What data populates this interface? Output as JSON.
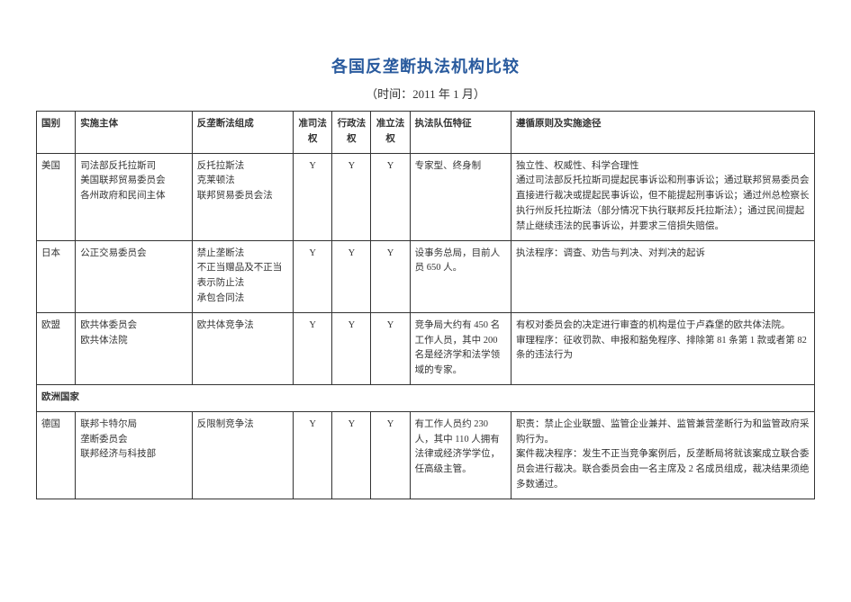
{
  "title": "各国反垄断执法机构比较",
  "subtitle": "（时间：2011 年 1 月）",
  "headers": {
    "c0": "国别",
    "c1": "实施主体",
    "c2": "反垄断法组成",
    "c3": "准司法权",
    "c4": "行政法权",
    "c5": "准立法权",
    "c6": "执法队伍特征",
    "c7": "遵循原则及实施途径"
  },
  "rows": {
    "us": {
      "c0": "美国",
      "c1": "司法部反托拉斯司\n美国联邦贸易委员会\n各州政府和民间主体",
      "c2": "反托拉斯法\n克莱顿法\n联邦贸易委员会法",
      "c3": "Y",
      "c4": "Y",
      "c5": "Y",
      "c6": "专家型、终身制",
      "c7": "独立性、权威性、科学合理性\n通过司法部反托拉斯司提起民事诉讼和刑事诉讼；通过联邦贸易委员会直接进行裁决或提起民事诉讼，但不能提起刑事诉讼；通过州总检察长执行州反托拉斯法（部分情况下执行联邦反托拉斯法）；通过民间提起禁止继续违法的民事诉讼，并要求三倍损失赔偿。"
    },
    "jp": {
      "c0": "日本",
      "c1": "公正交易委员会",
      "c2": "禁止垄断法\n不正当赠品及不正当表示防止法\n承包合同法",
      "c3": "Y",
      "c4": "Y",
      "c5": "Y",
      "c6": "设事务总局，目前人员 650 人。",
      "c7": "执法程序：调查、劝告与判决、对判决的起诉"
    },
    "eu": {
      "c0": "欧盟",
      "c1": "欧共体委员会\n欧共体法院",
      "c2": "欧共体竞争法",
      "c3": "Y",
      "c4": "Y",
      "c5": "Y",
      "c6": "竞争局大约有 450 名工作人员，其中 200 名是经济学和法学领域的专家。",
      "c7": "有权对委员会的决定进行审查的机构是位于卢森堡的欧共体法院。\n审理程序：征收罚款、申报和豁免程序、排除第 81 条第 1 款或者第 82 条的违法行为"
    },
    "section_europe": {
      "label": "欧洲国家"
    },
    "de": {
      "c0": "德国",
      "c1": "联邦卡特尔局\n垄断委员会\n联邦经济与科技部",
      "c2": "反限制竞争法",
      "c3": "Y",
      "c4": "Y",
      "c5": "Y",
      "c6": "有工作人员约 230 人，其中 110 人拥有法律或经济学学位，任高级主管。",
      "c7": "职责：禁止企业联盟、监管企业兼并、监管兼营垄断行为和监管政府采购行为。\n案件裁决程序：发生不正当竞争案例后，反垄断局将就该案成立联合委员会进行裁决。联合委员会由一名主席及 2 名成员组成，裁决结果须绝多数通过。"
    }
  },
  "col_widths": [
    "5%",
    "15%",
    "13%",
    "5%",
    "5%",
    "5%",
    "13%",
    "39%"
  ]
}
